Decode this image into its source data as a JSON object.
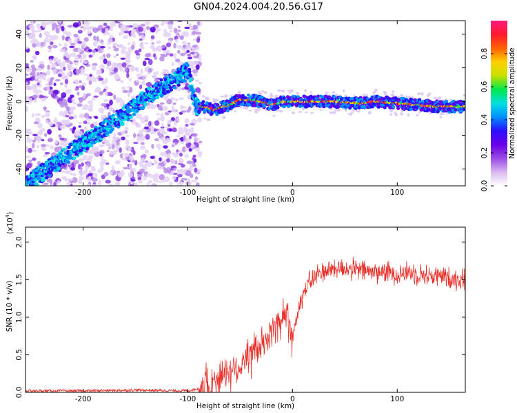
{
  "title": "GN04.2024.004.20.56.G17",
  "chart_data": [
    {
      "type": "heatmap",
      "panel": "spectrogram",
      "xlabel": "Height of straight line (km)",
      "ylabel": "Frequency (Hz)",
      "xlim": [
        -255,
        165
      ],
      "ylim": [
        -50,
        48
      ],
      "x_ticks": [
        -200,
        -100,
        0,
        100
      ],
      "y_ticks": [
        -40,
        -20,
        0,
        20,
        40
      ],
      "colorbar": {
        "label": "Normalized spectral amplitude",
        "range": [
          0,
          1
        ],
        "ticks": [
          0.0,
          0.2,
          0.4,
          0.6,
          0.8
        ],
        "colors": [
          "#ffffff",
          "#d8b8f0",
          "#9a4ae6",
          "#6a00e8",
          "#2a10ff",
          "#0090ff",
          "#00e0e0",
          "#00e84a",
          "#c8e000",
          "#ffd000",
          "#ff6000",
          "#ff1a30",
          "#ff1a7a"
        ]
      },
      "ridge": {
        "x": [
          -255,
          -230,
          -200,
          -170,
          -140,
          -120,
          -100,
          -92,
          -85,
          -80,
          -75,
          -70,
          -65,
          -60,
          -55,
          -50,
          -40,
          -30,
          -20,
          -10,
          0,
          20,
          40,
          60,
          80,
          100,
          120,
          140,
          165
        ],
        "y": [
          -50,
          -38,
          -25,
          -12,
          2,
          10,
          18,
          -3,
          -3,
          -4,
          -5,
          -4,
          -3,
          -2,
          0,
          1,
          1,
          0,
          -2,
          0,
          0,
          0,
          0,
          -1,
          0,
          -1,
          -2,
          -3,
          -3
        ]
      }
    },
    {
      "type": "line",
      "panel": "snr",
      "xlabel": "Height of straight line (km)",
      "ylabel": "SNR (10 * v/v)",
      "scale_label": "(x10",
      "scale_exp": "4",
      "scale_close": ")",
      "xlim": [
        -255,
        165
      ],
      "ylim": [
        0,
        2.2
      ],
      "x_ticks": [
        -200,
        -100,
        0,
        100
      ],
      "y_ticks": [
        0.0,
        0.5,
        1.0,
        1.5,
        2.0
      ],
      "series": [
        {
          "color": "#e8302a",
          "x": [
            -255,
            -200,
            -150,
            -100,
            -80,
            -70,
            -60,
            -50,
            -45,
            -40,
            -35,
            -30,
            -25,
            -20,
            -15,
            -10,
            -5,
            0,
            5,
            10,
            15,
            20,
            25,
            30,
            40,
            50,
            60,
            70,
            80,
            90,
            100,
            110,
            120,
            130,
            140,
            150,
            165
          ],
          "y": [
            0.02,
            0.02,
            0.03,
            0.02,
            0.08,
            0.2,
            0.3,
            0.35,
            0.45,
            0.5,
            0.55,
            0.6,
            0.7,
            0.8,
            0.9,
            1.0,
            1.05,
            0.75,
            1.1,
            1.3,
            1.45,
            1.52,
            1.58,
            1.62,
            1.65,
            1.65,
            1.63,
            1.62,
            1.6,
            1.6,
            1.58,
            1.6,
            1.58,
            1.55,
            1.55,
            1.52,
            1.5
          ]
        }
      ]
    }
  ]
}
